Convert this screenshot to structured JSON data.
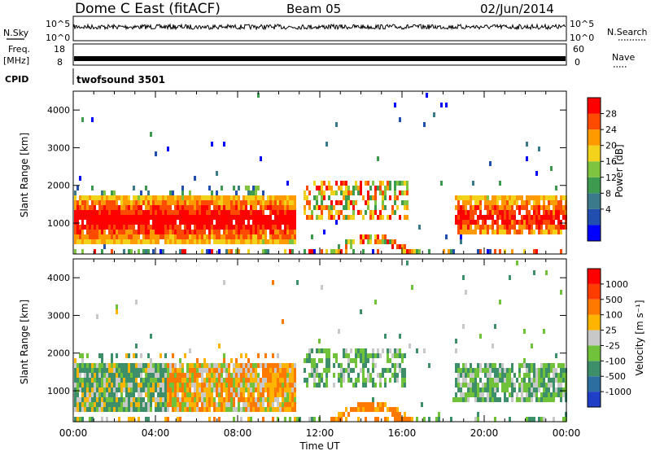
{
  "header": {
    "title": "Dome C East (fitACF)",
    "beam": "Beam 05",
    "date": "02/Jun/2014"
  },
  "strips": {
    "nsky_label": "N.Sky",
    "nsky_ticks": [
      "10^5",
      "10^0"
    ],
    "nsearch_label": "N.Search",
    "freq_label": "Freq.",
    "freq_unit": "[MHz]",
    "freq_ticks": [
      "18",
      "8"
    ],
    "nave_label": "Nave",
    "nave_ticks": [
      "60",
      "0"
    ],
    "cpid_label": "CPID",
    "cpid_value": "twofsound 3501"
  },
  "chart_data": [
    {
      "type": "heatmap",
      "name": "power",
      "ylabel": "Slant Range [km]",
      "yticks": [
        1000,
        2000,
        3000,
        4000
      ],
      "ylim": [
        180,
        4500
      ],
      "xlim": [
        0,
        24
      ],
      "colorbar_label": "Power [dB]",
      "colorbar_ticks": [
        "28",
        "24",
        "20",
        "16",
        "12",
        "8",
        "4"
      ],
      "colorscale": [
        "#0000ff",
        "#204fb0",
        "#3a7a8a",
        "#3d9b4f",
        "#7ec440",
        "#f2d21a",
        "#ff9a00",
        "#ff4b00",
        "#ff0000"
      ],
      "regions": [
        {
          "t": [
            0.0,
            10.8
          ],
          "r": [
            550,
            1750
          ],
          "level": "high"
        },
        {
          "t": [
            11.2,
            16.2
          ],
          "r": [
            1150,
            2150
          ],
          "level": "mid"
        },
        {
          "t": [
            12.5,
            16.5
          ],
          "r": [
            250,
            700
          ],
          "level": "arc"
        },
        {
          "t": [
            18.5,
            24.0
          ],
          "r": [
            700,
            1800
          ],
          "level": "high"
        }
      ]
    },
    {
      "type": "heatmap",
      "name": "velocity",
      "xlabel": "Time UT",
      "ylabel": "Slant Range [km]",
      "xticks": [
        "00:00",
        "04:00",
        "08:00",
        "12:00",
        "16:00",
        "20:00",
        "00:00"
      ],
      "yticks": [
        1000,
        2000,
        3000,
        4000
      ],
      "ylim": [
        180,
        4500
      ],
      "xlim": [
        0,
        24
      ],
      "colorbar_label": "Velocity [m s⁻¹]",
      "colorbar_ticks": [
        "1000",
        "500",
        "100",
        "25",
        "-25",
        "-100",
        "-500",
        "-1000"
      ],
      "colorscale": [
        "#1f3fc6",
        "#2d6ea0",
        "#3d8f6a",
        "#6fc23a",
        "#c8c8c8",
        "#ffb400",
        "#ff7800",
        "#ff3c00",
        "#ff0000"
      ]
    }
  ]
}
